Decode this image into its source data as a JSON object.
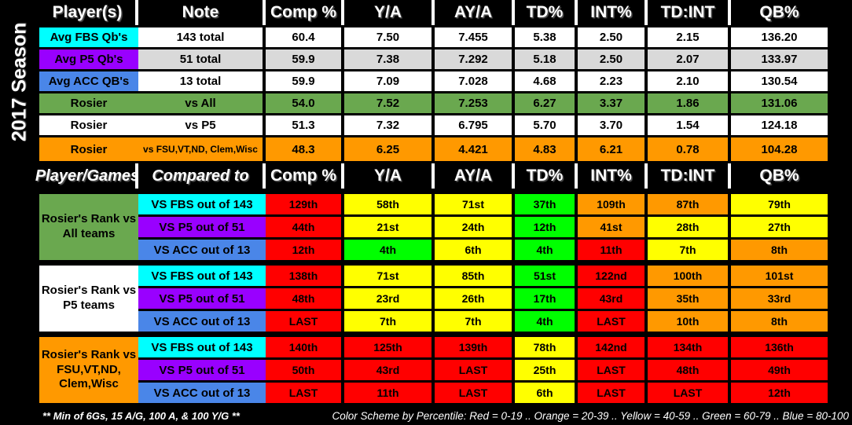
{
  "season_label": "2017 Season",
  "colors": {
    "cyan": "#00FFFF",
    "purple": "#9900FF",
    "blue": "#4A86E8",
    "green": "#6AA84F",
    "bright_green": "#00FF00",
    "orange": "#FF9900",
    "red": "#FF0000",
    "yellow": "#FFFF00",
    "gray": "#D9D9D9",
    "white": "#FFFFFF",
    "background": "#000000"
  },
  "chart_data": [
    {
      "type": "table",
      "headers": [
        "Player(s)",
        "Note",
        "Comp %",
        "Y/A",
        "AY/A",
        "TD%",
        "INT%",
        "TD:INT",
        "QB%"
      ],
      "rows": [
        {
          "player": "Avg FBS Qb's",
          "player_color": "cyan",
          "note": "143 total",
          "row_color": "white",
          "values": [
            "60.4",
            "7.50",
            "7.455",
            "5.38",
            "2.50",
            "2.15",
            "136.20"
          ]
        },
        {
          "player": "Avg P5 Qb's",
          "player_color": "purple",
          "note": "51 total",
          "row_color": "gray",
          "values": [
            "59.9",
            "7.38",
            "7.292",
            "5.18",
            "2.50",
            "2.07",
            "133.97"
          ]
        },
        {
          "player": "Avg ACC QB's",
          "player_color": "blue",
          "note": "13 total",
          "row_color": "white",
          "values": [
            "59.9",
            "7.09",
            "7.028",
            "4.68",
            "2.23",
            "2.10",
            "130.54"
          ]
        },
        {
          "player": "Rosier",
          "player_color": "green",
          "note": "vs All",
          "row_color": "green",
          "values": [
            "54.0",
            "7.52",
            "7.253",
            "6.27",
            "3.37",
            "1.86",
            "131.06"
          ]
        },
        {
          "player": "Rosier",
          "player_color": "white",
          "note": "vs P5",
          "row_color": "white",
          "values": [
            "51.3",
            "7.32",
            "6.795",
            "5.70",
            "3.70",
            "1.54",
            "124.18"
          ]
        },
        {
          "player": "Rosier",
          "player_color": "orange",
          "note": "vs FSU,VT,ND, Clem,Wisc",
          "row_color": "orange",
          "values": [
            "48.3",
            "6.25",
            "4.421",
            "4.83",
            "6.21",
            "0.78",
            "104.28"
          ]
        }
      ]
    },
    {
      "type": "table",
      "headers": [
        "Player/Games",
        "Compared to",
        "Comp %",
        "Y/A",
        "AY/A",
        "TD%",
        "INT%",
        "TD:INT",
        "QB%"
      ],
      "sections": [
        {
          "label": "Rosier's Rank vs All teams",
          "label_color": "green",
          "rows": [
            {
              "compared_to": "VS FBS  out of 143",
              "compared_color": "cyan",
              "cells": [
                {
                  "text": "129th",
                  "color": "red"
                },
                {
                  "text": "58th",
                  "color": "yellow"
                },
                {
                  "text": "71st",
                  "color": "yellow"
                },
                {
                  "text": "37th",
                  "color": "bright_green"
                },
                {
                  "text": "109th",
                  "color": "orange"
                },
                {
                  "text": "87th",
                  "color": "orange"
                },
                {
                  "text": "79th",
                  "color": "yellow"
                }
              ]
            },
            {
              "compared_to": "VS P5 out of 51",
              "compared_color": "purple",
              "cells": [
                {
                  "text": "44th",
                  "color": "red"
                },
                {
                  "text": "21st",
                  "color": "yellow"
                },
                {
                  "text": "24th",
                  "color": "yellow"
                },
                {
                  "text": "12th",
                  "color": "bright_green"
                },
                {
                  "text": "41st",
                  "color": "orange"
                },
                {
                  "text": "28th",
                  "color": "yellow"
                },
                {
                  "text": "27th",
                  "color": "yellow"
                }
              ]
            },
            {
              "compared_to": "VS ACC out of 13",
              "compared_color": "blue",
              "cells": [
                {
                  "text": "12th",
                  "color": "red"
                },
                {
                  "text": "4th",
                  "color": "bright_green"
                },
                {
                  "text": "6th",
                  "color": "yellow"
                },
                {
                  "text": "4th",
                  "color": "bright_green"
                },
                {
                  "text": "11th",
                  "color": "red"
                },
                {
                  "text": "7th",
                  "color": "yellow"
                },
                {
                  "text": "8th",
                  "color": "orange"
                }
              ]
            }
          ]
        },
        {
          "label": "Rosier's Rank vs P5 teams",
          "label_color": "white",
          "rows": [
            {
              "compared_to": "VS FBS  out of 143",
              "compared_color": "cyan",
              "cells": [
                {
                  "text": "138th",
                  "color": "red"
                },
                {
                  "text": "71st",
                  "color": "yellow"
                },
                {
                  "text": "85th",
                  "color": "yellow"
                },
                {
                  "text": "51st",
                  "color": "bright_green"
                },
                {
                  "text": "122nd",
                  "color": "red"
                },
                {
                  "text": "100th",
                  "color": "orange"
                },
                {
                  "text": "101st",
                  "color": "orange"
                }
              ]
            },
            {
              "compared_to": "VS P5 out of 51",
              "compared_color": "purple",
              "cells": [
                {
                  "text": "48th",
                  "color": "red"
                },
                {
                  "text": "23rd",
                  "color": "yellow"
                },
                {
                  "text": "26th",
                  "color": "yellow"
                },
                {
                  "text": "17th",
                  "color": "bright_green"
                },
                {
                  "text": "43rd",
                  "color": "red"
                },
                {
                  "text": "35th",
                  "color": "orange"
                },
                {
                  "text": "33rd",
                  "color": "orange"
                }
              ]
            },
            {
              "compared_to": "VS ACC out of 13",
              "compared_color": "blue",
              "cells": [
                {
                  "text": "LAST",
                  "color": "red"
                },
                {
                  "text": "7th",
                  "color": "yellow"
                },
                {
                  "text": "7th",
                  "color": "yellow"
                },
                {
                  "text": "4th",
                  "color": "bright_green"
                },
                {
                  "text": "LAST",
                  "color": "red"
                },
                {
                  "text": "10th",
                  "color": "orange"
                },
                {
                  "text": "8th",
                  "color": "orange"
                }
              ]
            }
          ]
        },
        {
          "label": "Rosier's Rank vs FSU,VT,ND, Clem,Wisc",
          "label_color": "orange",
          "rows": [
            {
              "compared_to": "VS FBS  out of 143",
              "compared_color": "cyan",
              "cells": [
                {
                  "text": "140th",
                  "color": "red"
                },
                {
                  "text": "125th",
                  "color": "red"
                },
                {
                  "text": "139th",
                  "color": "red"
                },
                {
                  "text": "78th",
                  "color": "yellow"
                },
                {
                  "text": "142nd",
                  "color": "red"
                },
                {
                  "text": "134th",
                  "color": "red"
                },
                {
                  "text": "136th",
                  "color": "red"
                }
              ]
            },
            {
              "compared_to": "VS P5 out of 51",
              "compared_color": "purple",
              "cells": [
                {
                  "text": "50th",
                  "color": "red"
                },
                {
                  "text": "43rd",
                  "color": "red"
                },
                {
                  "text": "LAST",
                  "color": "red"
                },
                {
                  "text": "25th",
                  "color": "yellow"
                },
                {
                  "text": "LAST",
                  "color": "red"
                },
                {
                  "text": "48th",
                  "color": "red"
                },
                {
                  "text": "49th",
                  "color": "red"
                }
              ]
            },
            {
              "compared_to": "VS ACC out of 13",
              "compared_color": "blue",
              "cells": [
                {
                  "text": "LAST",
                  "color": "red"
                },
                {
                  "text": "11th",
                  "color": "red"
                },
                {
                  "text": "LAST",
                  "color": "red"
                },
                {
                  "text": "6th",
                  "color": "yellow"
                },
                {
                  "text": "LAST",
                  "color": "red"
                },
                {
                  "text": "LAST",
                  "color": "red"
                },
                {
                  "text": "12th",
                  "color": "red"
                }
              ]
            }
          ]
        }
      ]
    }
  ],
  "footer": {
    "min_note": "** Min of  6Gs, 15 A/G, 100 A, & 100 Y/G **",
    "color_scheme": "Color Scheme by Percentile: Red = 0-19 .. Orange = 20-39 .. Yellow = 40-59 .. Green = 60-79 .. Blue = 80-100"
  }
}
